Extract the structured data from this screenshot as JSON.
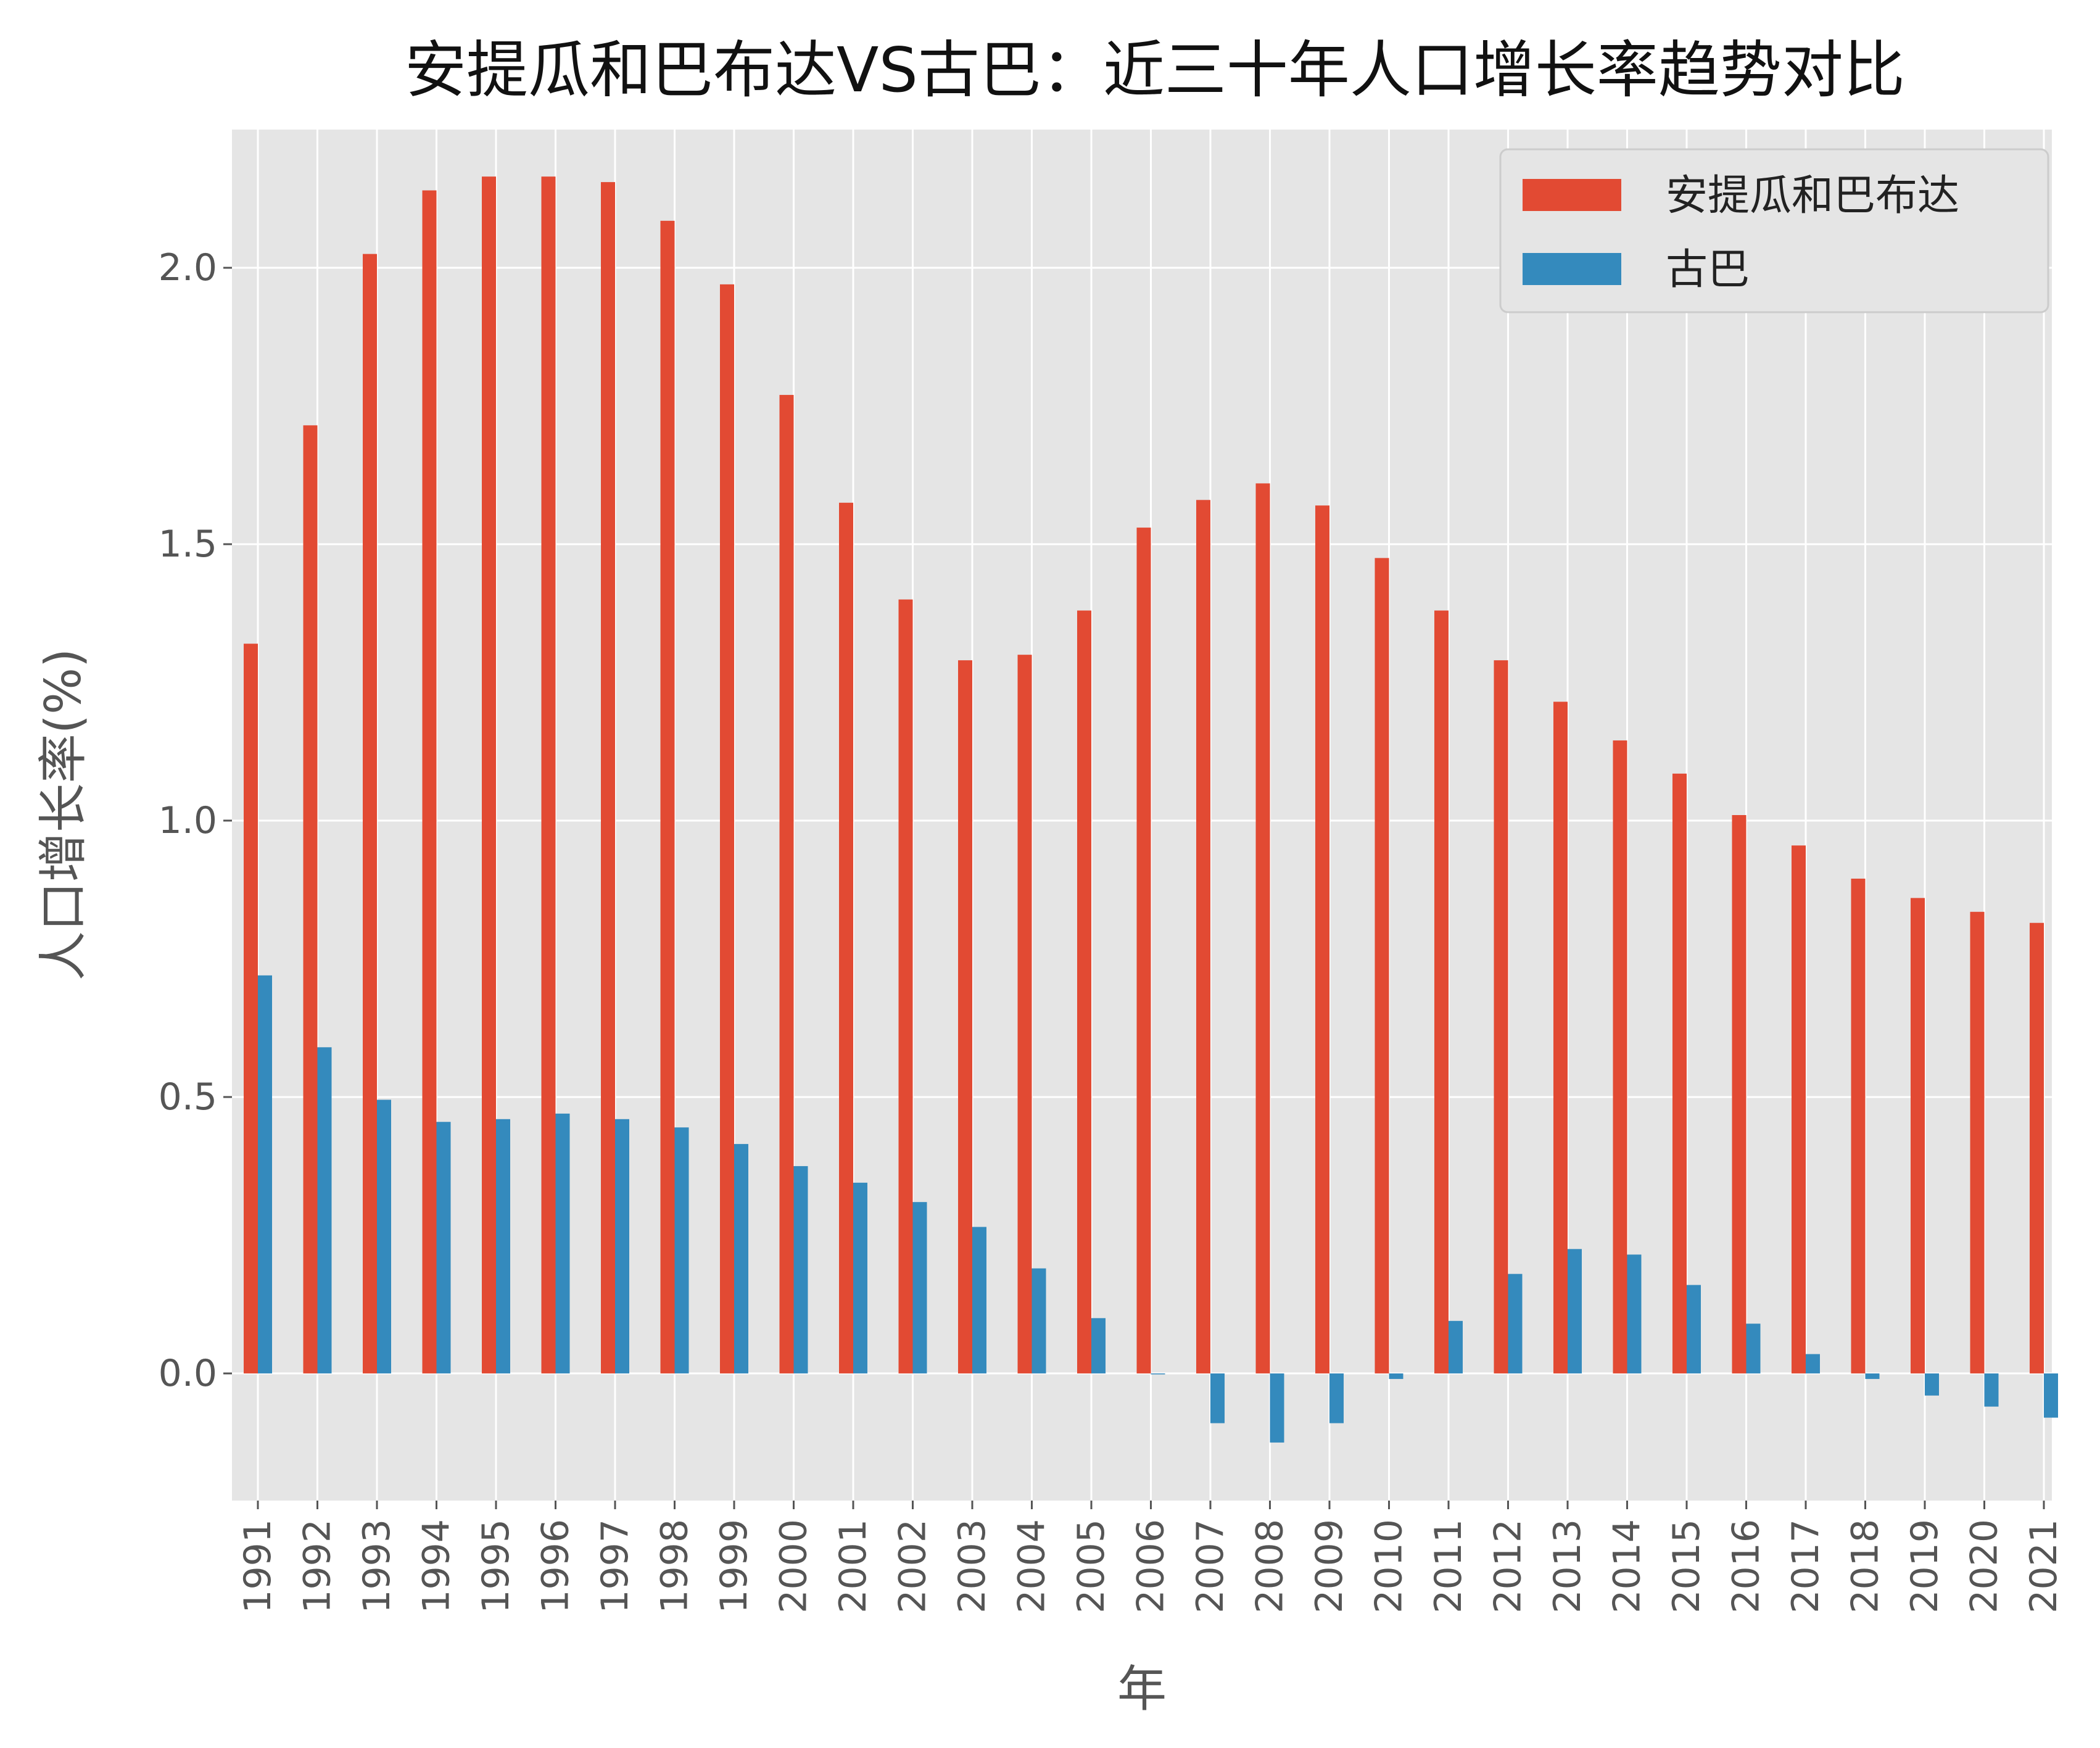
{
  "chart_data": {
    "type": "bar",
    "title": "安提瓜和巴布达VS古巴：近三十年人口增长率趋势对比",
    "xlabel": "年",
    "ylabel": "人口增长率(%)",
    "ylim": [
      -0.23,
      2.25
    ],
    "yticks": [
      0.0,
      0.5,
      1.0,
      1.5,
      2.0
    ],
    "ytick_labels": [
      "0.0",
      "0.5",
      "1.0",
      "1.5",
      "2.0"
    ],
    "grid": true,
    "legend_position": "top-right",
    "categories": [
      "1991",
      "1992",
      "1993",
      "1994",
      "1995",
      "1996",
      "1997",
      "1998",
      "1999",
      "2000",
      "2001",
      "2002",
      "2003",
      "2004",
      "2005",
      "2006",
      "2007",
      "2008",
      "2009",
      "2010",
      "2011",
      "2012",
      "2013",
      "2014",
      "2015",
      "2016",
      "2017",
      "2018",
      "2019",
      "2020",
      "2021"
    ],
    "series": [
      {
        "name": "安提瓜和巴布达",
        "color": "#E24A33",
        "values": [
          1.32,
          1.715,
          2.025,
          2.14,
          2.165,
          2.165,
          2.155,
          2.085,
          1.97,
          1.77,
          1.575,
          1.4,
          1.29,
          1.3,
          1.38,
          1.53,
          1.58,
          1.61,
          1.57,
          1.475,
          1.38,
          1.29,
          1.215,
          1.145,
          1.085,
          1.01,
          0.955,
          0.895,
          0.86,
          0.835,
          0.815
        ]
      },
      {
        "name": "古巴",
        "color": "#348ABD",
        "values": [
          0.72,
          0.59,
          0.495,
          0.455,
          0.46,
          0.47,
          0.46,
          0.445,
          0.415,
          0.375,
          0.345,
          0.31,
          0.265,
          0.19,
          0.1,
          0.0,
          -0.09,
          -0.125,
          -0.09,
          -0.01,
          0.095,
          0.18,
          0.225,
          0.215,
          0.16,
          0.09,
          0.035,
          -0.01,
          -0.04,
          -0.06,
          -0.08
        ]
      }
    ]
  }
}
